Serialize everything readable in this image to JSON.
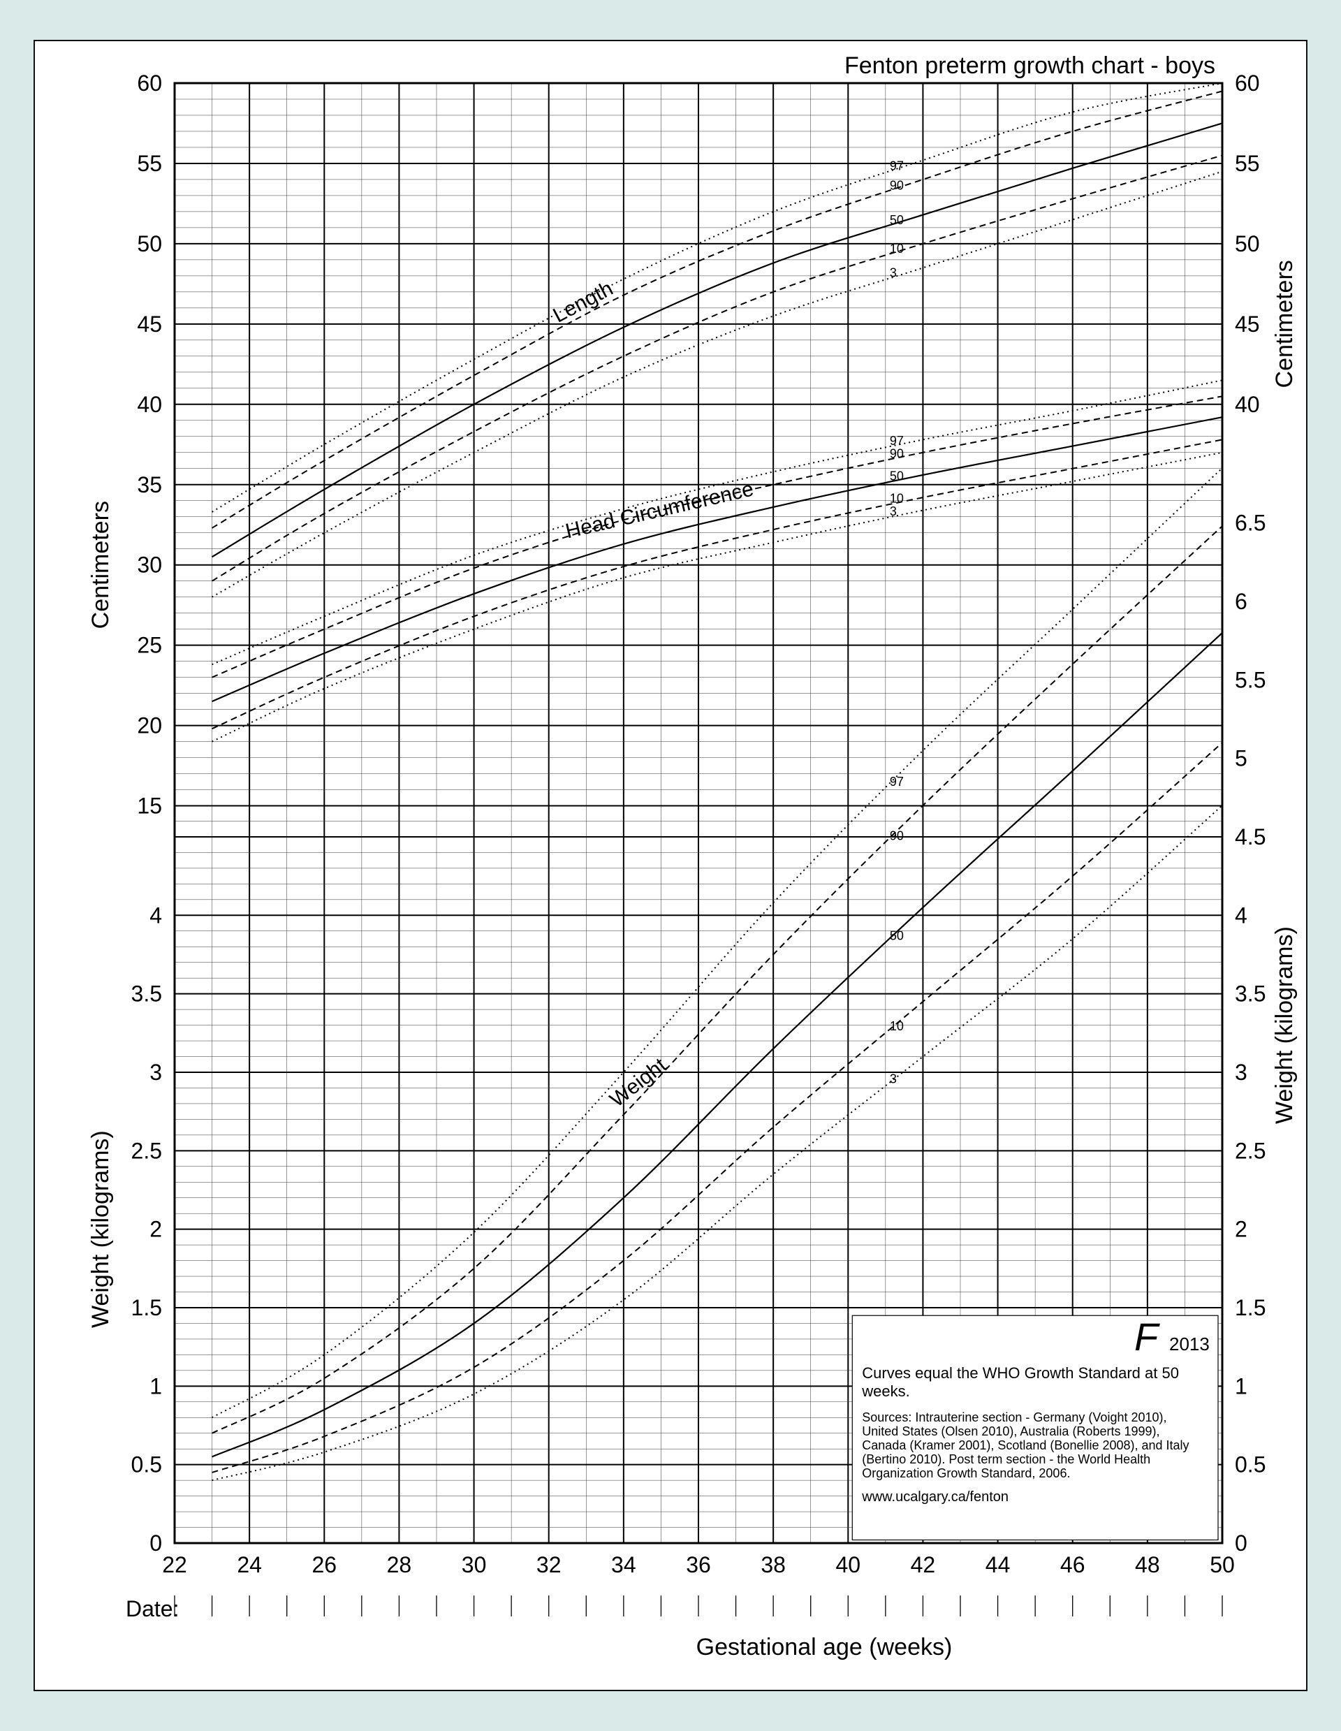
{
  "title": "Fenton preterm growth chart - boys",
  "x_axis": {
    "label": "Gestational age (weeks)",
    "min": 22,
    "max": 50,
    "major_ticks": [
      22,
      24,
      26,
      28,
      30,
      32,
      34,
      36,
      38,
      40,
      42,
      44,
      46,
      48,
      50
    ],
    "minor_step": 1
  },
  "left_axis_upper": {
    "label": "Centimeters",
    "min": 15,
    "max": 60,
    "ticks": [
      15,
      20,
      25,
      30,
      35,
      40,
      45,
      50,
      55,
      60
    ],
    "minor_step": 1
  },
  "left_axis_lower": {
    "label": "Weight (kilograms)",
    "min": 0,
    "max": 4,
    "ticks": [
      0,
      0.5,
      1,
      1.5,
      2,
      2.5,
      3,
      3.5,
      4
    ],
    "minor_step": 0.1
  },
  "right_axis_top": {
    "label": "Centimeters",
    "ticks": [
      40,
      45,
      50,
      55,
      60
    ]
  },
  "right_axis_mid": {
    "ticks": [
      5,
      5.5,
      6,
      6.5
    ],
    "minor_step": 0.1
  },
  "right_axis_bottom": {
    "label": "Weight (kilograms)",
    "ticks": [
      0,
      0.5,
      1,
      1.5,
      2,
      2.5,
      3,
      3.5,
      4,
      4.5
    ],
    "minor_step": 0.1
  },
  "percentile_labels": [
    "3",
    "10",
    "50",
    "90",
    "97"
  ],
  "styles": {
    "line_solid": {
      "dash": "",
      "width": 2.2
    },
    "line_dashed": {
      "dash": "9 6",
      "width": 2.0
    },
    "line_dotted": {
      "dash": "2 5",
      "width": 2.0
    },
    "grid_major_width": 2.0,
    "grid_major_color": "#000000",
    "grid_minor_width": 0.5,
    "grid_minor_color": "#333333",
    "page_bg": "#d9eae8",
    "sheet_bg": "#ffffff",
    "text_color": "#000000",
    "title_fontsize": 34,
    "axis_num_fontsize": 32,
    "axis_label_fontsize": 34,
    "curve_label_fontsize": 30,
    "perc_label_fontsize": 18,
    "footnote_fontsize": 18,
    "info_title_fontsize": 22
  },
  "family_labels": {
    "length": "Length",
    "head": "Head Circumference",
    "weight": "Weight"
  },
  "curves": {
    "length": {
      "3": {
        "style": "dotted",
        "pts": [
          [
            23,
            28.0
          ],
          [
            26,
            32.0
          ],
          [
            30,
            37.0
          ],
          [
            34,
            41.7
          ],
          [
            38,
            45.5
          ],
          [
            42,
            48.5
          ],
          [
            46,
            51.5
          ],
          [
            50,
            54.5
          ]
        ]
      },
      "10": {
        "style": "dashed",
        "pts": [
          [
            23,
            29.0
          ],
          [
            26,
            33.2
          ],
          [
            30,
            38.3
          ],
          [
            34,
            43.0
          ],
          [
            38,
            47.0
          ],
          [
            42,
            50.0
          ],
          [
            46,
            52.8
          ],
          [
            50,
            55.5
          ]
        ]
      },
      "50": {
        "style": "solid",
        "pts": [
          [
            23,
            30.5
          ],
          [
            26,
            34.7
          ],
          [
            30,
            40.0
          ],
          [
            34,
            44.8
          ],
          [
            38,
            48.8
          ],
          [
            42,
            51.8
          ],
          [
            46,
            54.7
          ],
          [
            50,
            57.5
          ]
        ]
      },
      "90": {
        "style": "dashed",
        "pts": [
          [
            23,
            32.3
          ],
          [
            26,
            36.5
          ],
          [
            30,
            41.8
          ],
          [
            34,
            46.8
          ],
          [
            38,
            50.8
          ],
          [
            42,
            54.0
          ],
          [
            46,
            57.0
          ],
          [
            50,
            59.5
          ]
        ]
      },
      "97": {
        "style": "dotted",
        "pts": [
          [
            23,
            33.3
          ],
          [
            26,
            37.5
          ],
          [
            30,
            42.8
          ],
          [
            34,
            47.8
          ],
          [
            38,
            52.0
          ],
          [
            42,
            55.2
          ],
          [
            46,
            58.2
          ],
          [
            50,
            60.0
          ]
        ]
      }
    },
    "head": {
      "3": {
        "style": "dotted",
        "pts": [
          [
            23,
            19.0
          ],
          [
            26,
            22.3
          ],
          [
            30,
            26.0
          ],
          [
            34,
            29.2
          ],
          [
            38,
            31.4
          ],
          [
            42,
            33.4
          ],
          [
            46,
            35.2
          ],
          [
            50,
            37.0
          ]
        ]
      },
      "10": {
        "style": "dashed",
        "pts": [
          [
            23,
            19.8
          ],
          [
            26,
            23.0
          ],
          [
            30,
            26.8
          ],
          [
            34,
            29.9
          ],
          [
            38,
            32.2
          ],
          [
            42,
            34.2
          ],
          [
            46,
            36.0
          ],
          [
            50,
            37.8
          ]
        ]
      },
      "50": {
        "style": "solid",
        "pts": [
          [
            23,
            21.5
          ],
          [
            26,
            24.5
          ],
          [
            30,
            28.2
          ],
          [
            34,
            31.3
          ],
          [
            38,
            33.6
          ],
          [
            42,
            35.6
          ],
          [
            46,
            37.4
          ],
          [
            50,
            39.2
          ]
        ]
      },
      "90": {
        "style": "dashed",
        "pts": [
          [
            23,
            23.0
          ],
          [
            26,
            26.0
          ],
          [
            30,
            29.8
          ],
          [
            34,
            32.8
          ],
          [
            38,
            35.0
          ],
          [
            42,
            37.0
          ],
          [
            46,
            38.8
          ],
          [
            50,
            40.5
          ]
        ]
      },
      "97": {
        "style": "dotted",
        "pts": [
          [
            23,
            23.8
          ],
          [
            26,
            26.8
          ],
          [
            30,
            30.6
          ],
          [
            34,
            33.5
          ],
          [
            38,
            35.8
          ],
          [
            42,
            37.8
          ],
          [
            46,
            39.6
          ],
          [
            50,
            41.5
          ]
        ]
      }
    },
    "weight": {
      "3": {
        "style": "dotted",
        "pts": [
          [
            23,
            0.4
          ],
          [
            26,
            0.58
          ],
          [
            30,
            0.95
          ],
          [
            34,
            1.55
          ],
          [
            38,
            2.35
          ],
          [
            42,
            3.1
          ],
          [
            46,
            3.85
          ],
          [
            50,
            4.7
          ]
        ]
      },
      "10": {
        "style": "dashed",
        "pts": [
          [
            23,
            0.45
          ],
          [
            26,
            0.68
          ],
          [
            30,
            1.12
          ],
          [
            34,
            1.8
          ],
          [
            38,
            2.65
          ],
          [
            42,
            3.45
          ],
          [
            46,
            4.25
          ],
          [
            50,
            5.1
          ]
        ]
      },
      "50": {
        "style": "solid",
        "pts": [
          [
            23,
            0.55
          ],
          [
            26,
            0.85
          ],
          [
            30,
            1.4
          ],
          [
            34,
            2.2
          ],
          [
            38,
            3.15
          ],
          [
            42,
            4.05
          ],
          [
            46,
            4.92
          ],
          [
            50,
            5.8
          ]
        ]
      },
      "90": {
        "style": "dashed",
        "pts": [
          [
            23,
            0.7
          ],
          [
            26,
            1.05
          ],
          [
            30,
            1.75
          ],
          [
            34,
            2.73
          ],
          [
            38,
            3.75
          ],
          [
            42,
            4.7
          ],
          [
            46,
            5.6
          ],
          [
            50,
            6.48
          ]
        ]
      },
      "97": {
        "style": "dotted",
        "pts": [
          [
            23,
            0.8
          ],
          [
            26,
            1.2
          ],
          [
            30,
            1.98
          ],
          [
            34,
            3.0
          ],
          [
            38,
            4.08
          ],
          [
            42,
            5.05
          ],
          [
            46,
            5.95
          ],
          [
            50,
            6.85
          ]
        ]
      }
    }
  },
  "info_box": {
    "logo": "F",
    "logo_year": "2013",
    "line1": "Curves equal the WHO Growth Standard at 50 weeks.",
    "sources": "Sources: Intrauterine section - Germany (Voight 2010), United States (Olsen 2010), Australia (Roberts 1999), Canada (Kramer 2001), Scotland (Bonellie 2008), and Italy (Bertino 2010). Post term section - the World Health Organization Growth Standard, 2006.",
    "url": "www.ucalgary.ca/fenton"
  },
  "date_label": "Date:"
}
